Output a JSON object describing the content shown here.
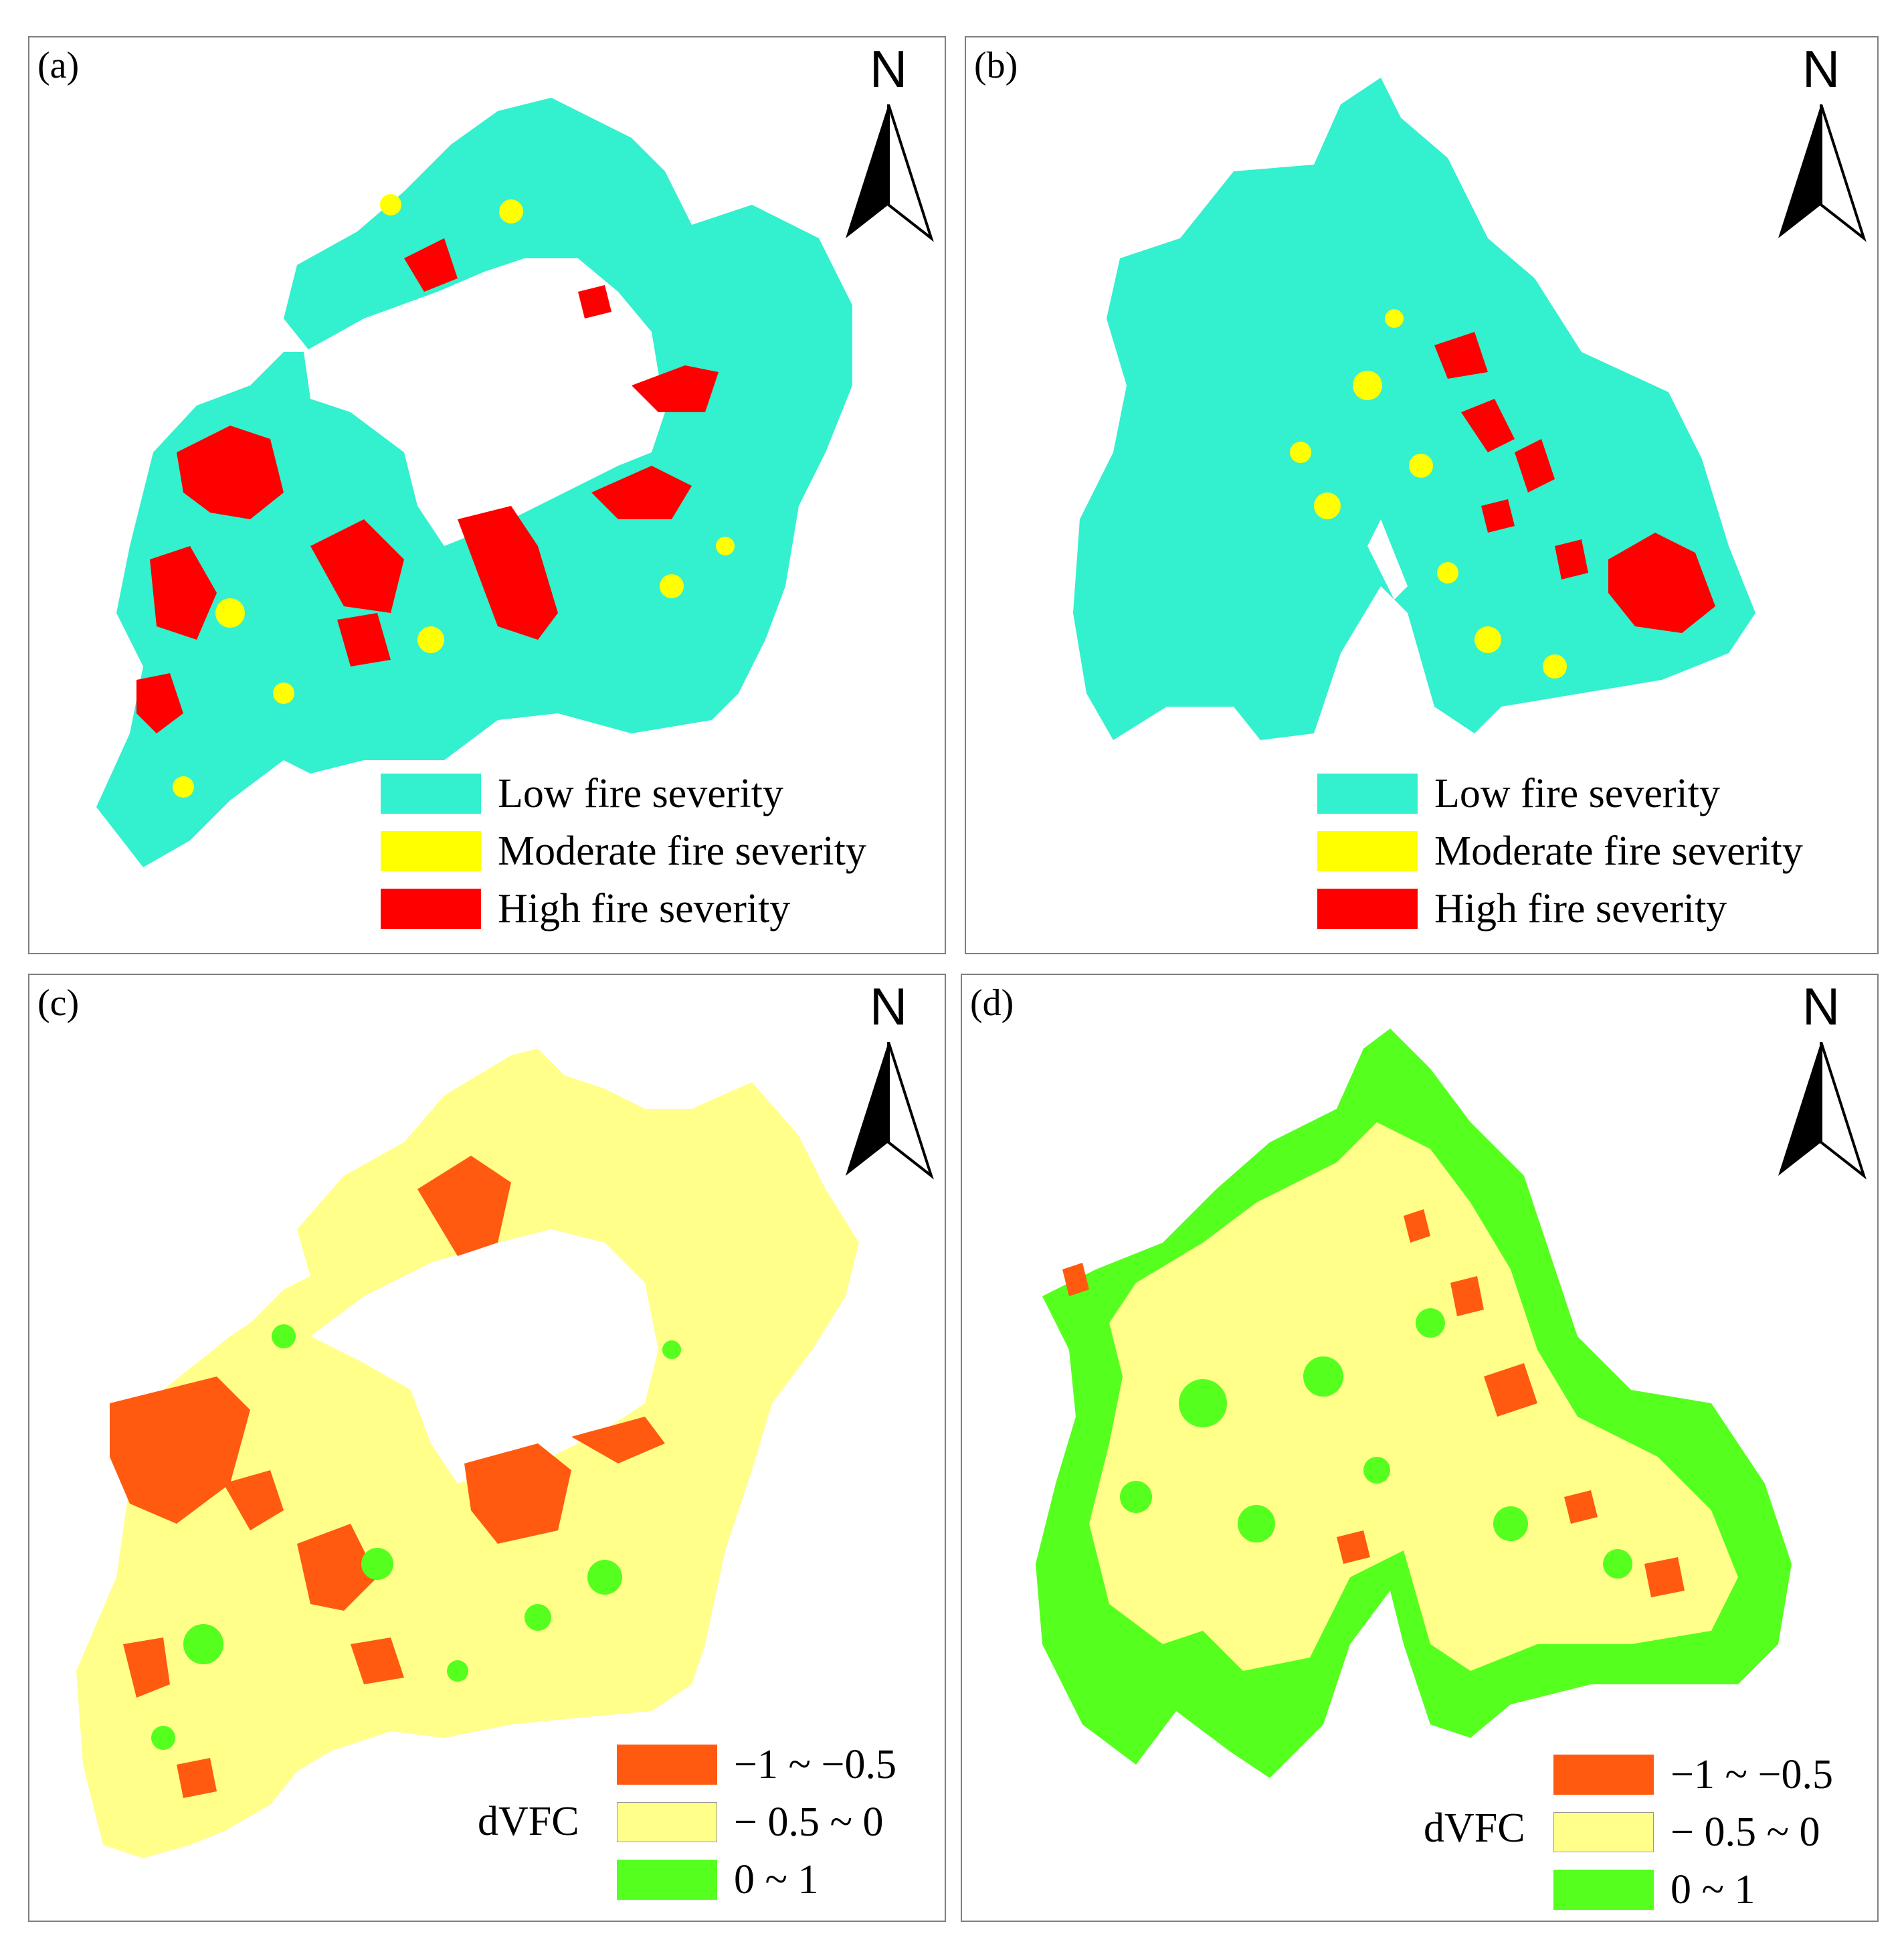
{
  "figure": {
    "north_label": "N",
    "panels": [
      {
        "id": "a",
        "tag": "(a)",
        "legend_title": "",
        "legend": [
          {
            "label": "Low fire severity",
            "color": "#33F0CF"
          },
          {
            "label": "Moderate fire severity",
            "color": "#FFFF00"
          },
          {
            "label": "High fire severity",
            "color": "#FF0000"
          }
        ]
      },
      {
        "id": "b",
        "tag": "(b)",
        "legend_title": "",
        "legend": [
          {
            "label": "Low fire severity",
            "color": "#33F0CF"
          },
          {
            "label": "Moderate fire severity",
            "color": "#FFFF00"
          },
          {
            "label": "High fire severity",
            "color": "#FF0000"
          }
        ]
      },
      {
        "id": "c",
        "tag": "(c)",
        "legend_title": "dVFC",
        "legend": [
          {
            "label": "−1 ~ −0.5",
            "color": "#FF5A0F"
          },
          {
            "label": "− 0.5 ~ 0",
            "color": "#FFFF8A"
          },
          {
            "label": "0 ~ 1",
            "color": "#55FF1E"
          }
        ]
      },
      {
        "id": "d",
        "tag": "(d)",
        "legend_title": "dVFC",
        "legend": [
          {
            "label": "−1 ~ −0.5",
            "color": "#FF5A0F"
          },
          {
            "label": "− 0.5 ~ 0",
            "color": "#FFFF8A"
          },
          {
            "label": "0 ~ 1",
            "color": "#55FF1E"
          }
        ]
      }
    ]
  }
}
